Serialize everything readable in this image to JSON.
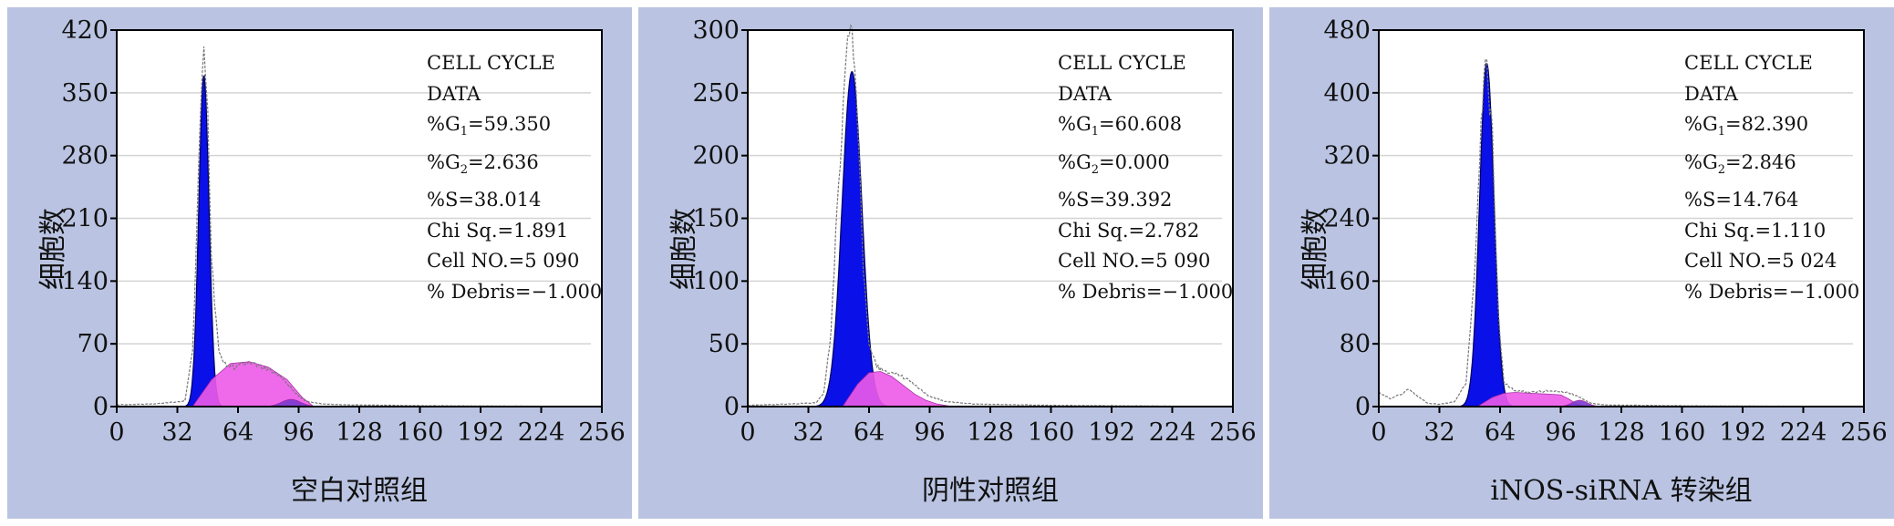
{
  "chart_data": [
    {
      "type": "area",
      "xlabel": "空白对照组",
      "ylabel": "细胞数",
      "xlim": [
        0,
        256
      ],
      "ylim": [
        0,
        420
      ],
      "xticks": [
        0,
        32,
        64,
        96,
        128,
        160,
        192,
        224,
        256
      ],
      "yticks": [
        0,
        70,
        140,
        210,
        280,
        350,
        420
      ],
      "stats": {
        "title1": "CELL CYCLE",
        "title2": "DATA",
        "g1_label": "%G",
        "g1_sub": "1",
        "g1_value": "=59.350",
        "g2_label": "%G",
        "g2_sub": "2",
        "g2_value": "=2.636",
        "s": "%S=38.014",
        "chi": "Chi Sq.=1.891",
        "cells": "Cell NO.=5 090",
        "debris": "% Debris=−1.000"
      },
      "series": [
        {
          "component": "G1",
          "color": "#0a10e8",
          "peak_x": 46,
          "peak_y": 370,
          "sigma": 2.7
        },
        {
          "component": "S",
          "color": "#ee5ae8",
          "x": [
            40,
            50,
            60,
            70,
            80,
            90,
            98,
            104
          ],
          "y": [
            0,
            30,
            48,
            50,
            44,
            30,
            10,
            0
          ]
        },
        {
          "component": "G2",
          "color": "#7a3ad0",
          "peak_x": 92,
          "peak_y": 8,
          "sigma": 5
        },
        {
          "component": "raw",
          "color": "#888888",
          "x": [
            0,
            20,
            36,
            40,
            42,
            44,
            46,
            48,
            50,
            54,
            58,
            62,
            68,
            74,
            80,
            86,
            90,
            96,
            100,
            108,
            120,
            160,
            256
          ],
          "y": [
            2,
            3,
            6,
            60,
            180,
            320,
            415,
            330,
            160,
            60,
            45,
            44,
            50,
            47,
            42,
            35,
            25,
            12,
            6,
            3,
            2,
            1,
            0
          ]
        }
      ]
    },
    {
      "type": "area",
      "xlabel": "阴性对照组",
      "ylabel": "细胞数",
      "xlim": [
        0,
        256
      ],
      "ylim": [
        0,
        300
      ],
      "xticks": [
        0,
        32,
        64,
        96,
        128,
        160,
        192,
        224,
        256
      ],
      "yticks": [
        0,
        50,
        100,
        150,
        200,
        250,
        300
      ],
      "stats": {
        "title1": "CELL CYCLE",
        "title2": "DATA",
        "g1_label": "%G",
        "g1_sub": "1",
        "g1_value": "=60.608",
        "g2_label": "%G",
        "g2_sub": "2",
        "g2_value": "=0.000",
        "s": "%S=39.392",
        "chi": "Chi Sq.=2.782",
        "cells": "Cell NO.=5 090",
        "debris": "% Debris=−1.000"
      },
      "series": [
        {
          "component": "G1",
          "color": "#0a10e8",
          "peak_x": 55,
          "peak_y": 267,
          "sigma": 5.2
        },
        {
          "component": "S",
          "color": "#ee5ae8",
          "x": [
            50,
            58,
            64,
            70,
            76,
            82,
            88,
            94,
            100,
            108
          ],
          "y": [
            0,
            18,
            27,
            28,
            24,
            17,
            10,
            5,
            2,
            0
          ]
        },
        {
          "component": "raw",
          "color": "#888888",
          "x": [
            0,
            20,
            36,
            40,
            44,
            48,
            52,
            55,
            58,
            61,
            64,
            68,
            72,
            78,
            84,
            90,
            96,
            104,
            120,
            160,
            256
          ],
          "y": [
            1,
            2,
            3,
            10,
            60,
            180,
            280,
            295,
            230,
            110,
            50,
            32,
            28,
            26,
            22,
            15,
            8,
            4,
            2,
            1,
            0
          ]
        }
      ]
    },
    {
      "type": "area",
      "xlabel": "iNOS-siRNA 转染组",
      "ylabel": "细胞数",
      "xlim": [
        0,
        256
      ],
      "ylim": [
        0,
        480
      ],
      "xticks": [
        0,
        32,
        64,
        96,
        128,
        160,
        192,
        224,
        256
      ],
      "yticks": [
        0,
        80,
        160,
        240,
        320,
        400,
        480
      ],
      "stats": {
        "title1": "CELL CYCLE",
        "title2": "DATA",
        "g1_label": "%G",
        "g1_sub": "1",
        "g1_value": "=82.390",
        "g2_label": "%G",
        "g2_sub": "2",
        "g2_value": "=2.846",
        "s": "%S=14.764",
        "chi": "Chi Sq.=1.110",
        "cells": "Cell NO.=5 024",
        "debris": "% Debris=−1.000"
      },
      "series": [
        {
          "component": "G1",
          "color": "#0a10e8",
          "peak_x": 57,
          "peak_y": 438,
          "sigma": 3.8
        },
        {
          "component": "S",
          "color": "#ee5ae8",
          "x": [
            52,
            60,
            66,
            72,
            80,
            88,
            96,
            100,
            104,
            110
          ],
          "y": [
            0,
            12,
            17,
            18,
            17,
            16,
            15,
            10,
            4,
            0
          ]
        },
        {
          "component": "G2",
          "color": "#7a3ad0",
          "peak_x": 106,
          "peak_y": 8,
          "sigma": 4
        },
        {
          "component": "raw",
          "color": "#888888",
          "x": [
            0,
            6,
            12,
            16,
            20,
            26,
            32,
            40,
            46,
            50,
            54,
            57,
            60,
            63,
            66,
            72,
            80,
            90,
            100,
            106,
            112,
            120,
            160,
            256
          ],
          "y": [
            18,
            10,
            16,
            22,
            14,
            4,
            3,
            6,
            30,
            150,
            360,
            448,
            340,
            120,
            30,
            20,
            18,
            20,
            18,
            12,
            4,
            2,
            1,
            0
          ]
        }
      ]
    }
  ]
}
